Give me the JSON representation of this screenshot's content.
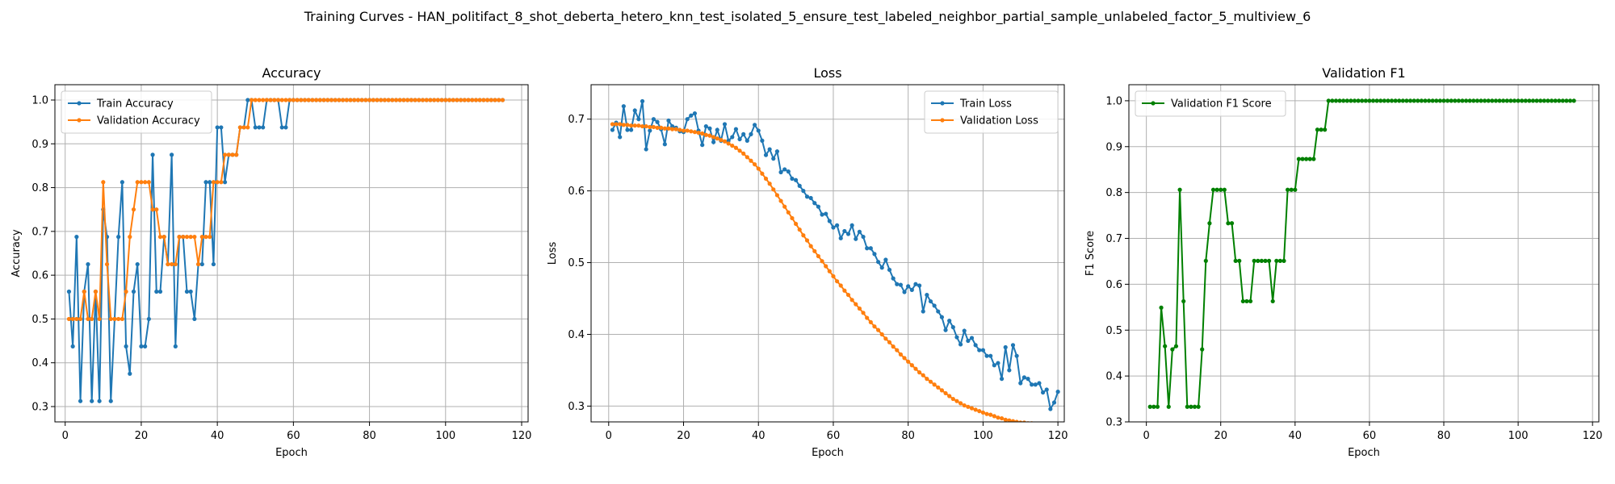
{
  "figure": {
    "suptitle": "Training Curves - HAN_politifact_8_shot_deberta_hetero_knn_test_isolated_5_ensure_test_labeled_neighbor_partial_sample_unlabeled_factor_5_multiview_6"
  },
  "colors": {
    "blue": "#1f77b4",
    "orange": "#ff7f0e",
    "green": "#008000",
    "grid": "#b0b0b0"
  },
  "chart_data": [
    {
      "type": "line",
      "title": "Accuracy",
      "xlabel": "Epoch",
      "ylabel": "Accuracy",
      "xlim": [
        -2.7,
        121.7
      ],
      "ylim": [
        0.265,
        1.035
      ],
      "xticks": [
        0,
        20,
        40,
        60,
        80,
        100,
        120
      ],
      "yticks": [
        0.3,
        0.4,
        0.5,
        0.6,
        0.7,
        0.8,
        0.9,
        1.0
      ],
      "grid": true,
      "legend_position": "upper-left",
      "x_start": 1,
      "series": [
        {
          "name": "Train Accuracy",
          "color": "#1f77b4",
          "values": [
            0.5625,
            0.4375,
            0.6875,
            0.3125,
            0.5625,
            0.625,
            0.3125,
            0.5625,
            0.3125,
            0.75,
            0.6875,
            0.3125,
            0.5,
            0.6875,
            0.8125,
            0.4375,
            0.375,
            0.5625,
            0.625,
            0.4375,
            0.4375,
            0.5,
            0.875,
            0.5625,
            0.5625,
            0.6875,
            0.625,
            0.875,
            0.4375,
            0.6875,
            0.6875,
            0.5625,
            0.5625,
            0.5,
            0.625,
            0.625,
            0.8125,
            0.8125,
            0.625,
            0.9375,
            0.9375,
            0.8125,
            0.875,
            0.875,
            0.875,
            0.9375,
            0.9375,
            1.0,
            1.0,
            0.9375,
            0.9375,
            0.9375,
            1.0,
            1.0,
            1.0,
            1.0,
            0.9375,
            0.9375,
            1.0,
            1.0,
            1.0,
            1.0,
            1.0,
            1.0,
            1.0,
            1.0,
            1.0,
            1.0,
            1.0,
            1.0,
            1.0,
            1.0,
            1.0,
            1.0,
            1.0,
            1.0,
            1.0,
            1.0,
            1.0,
            1.0,
            1.0,
            1.0,
            1.0,
            1.0,
            1.0,
            1.0,
            1.0,
            1.0,
            1.0,
            1.0,
            1.0,
            1.0,
            1.0,
            1.0,
            1.0,
            1.0,
            1.0,
            1.0,
            1.0,
            1.0,
            1.0,
            1.0,
            1.0,
            1.0,
            1.0,
            1.0,
            1.0,
            1.0,
            1.0,
            1.0,
            1.0,
            1.0,
            1.0,
            1.0,
            1.0
          ]
        },
        {
          "name": "Validation Accuracy",
          "color": "#ff7f0e",
          "values": [
            0.5,
            0.5,
            0.5,
            0.5,
            0.5625,
            0.5,
            0.5,
            0.5625,
            0.5,
            0.8125,
            0.625,
            0.5,
            0.5,
            0.5,
            0.5,
            0.5625,
            0.6875,
            0.75,
            0.8125,
            0.8125,
            0.8125,
            0.8125,
            0.75,
            0.75,
            0.6875,
            0.6875,
            0.625,
            0.625,
            0.625,
            0.6875,
            0.6875,
            0.6875,
            0.6875,
            0.6875,
            0.625,
            0.6875,
            0.6875,
            0.6875,
            0.8125,
            0.8125,
            0.8125,
            0.875,
            0.875,
            0.875,
            0.875,
            0.9375,
            0.9375,
            0.9375,
            1.0,
            1.0,
            1.0,
            1.0,
            1.0,
            1.0,
            1.0,
            1.0,
            1.0,
            1.0,
            1.0,
            1.0,
            1.0,
            1.0,
            1.0,
            1.0,
            1.0,
            1.0,
            1.0,
            1.0,
            1.0,
            1.0,
            1.0,
            1.0,
            1.0,
            1.0,
            1.0,
            1.0,
            1.0,
            1.0,
            1.0,
            1.0,
            1.0,
            1.0,
            1.0,
            1.0,
            1.0,
            1.0,
            1.0,
            1.0,
            1.0,
            1.0,
            1.0,
            1.0,
            1.0,
            1.0,
            1.0,
            1.0,
            1.0,
            1.0,
            1.0,
            1.0,
            1.0,
            1.0,
            1.0,
            1.0,
            1.0,
            1.0,
            1.0,
            1.0,
            1.0,
            1.0,
            1.0,
            1.0,
            1.0,
            1.0,
            1.0
          ]
        }
      ]
    },
    {
      "type": "line",
      "title": "Loss",
      "xlabel": "Epoch",
      "ylabel": "Loss",
      "xlim": [
        -4.7,
        121.7
      ],
      "ylim": [
        0.278,
        0.748
      ],
      "xticks": [
        0,
        20,
        40,
        60,
        80,
        100,
        120
      ],
      "yticks": [
        0.3,
        0.4,
        0.5,
        0.6,
        0.7
      ],
      "grid": true,
      "legend_position": "upper-right",
      "x_start": 1,
      "series": [
        {
          "name": "Train Loss",
          "color": "#1f77b4",
          "values": [
            0.685,
            0.695,
            0.675,
            0.718,
            0.685,
            0.685,
            0.712,
            0.7,
            0.725,
            0.658,
            0.684,
            0.7,
            0.696,
            0.686,
            0.665,
            0.698,
            0.69,
            0.688,
            0.683,
            0.682,
            0.7,
            0.705,
            0.708,
            0.684,
            0.664,
            0.69,
            0.687,
            0.668,
            0.685,
            0.67,
            0.693,
            0.67,
            0.675,
            0.686,
            0.672,
            0.679,
            0.67,
            0.679,
            0.692,
            0.684,
            0.67,
            0.65,
            0.658,
            0.645,
            0.655,
            0.626,
            0.63,
            0.627,
            0.617,
            0.615,
            0.607,
            0.6,
            0.592,
            0.59,
            0.583,
            0.578,
            0.567,
            0.568,
            0.558,
            0.549,
            0.552,
            0.534,
            0.544,
            0.54,
            0.552,
            0.533,
            0.543,
            0.536,
            0.52,
            0.52,
            0.512,
            0.501,
            0.493,
            0.504,
            0.49,
            0.478,
            0.47,
            0.469,
            0.459,
            0.467,
            0.462,
            0.47,
            0.468,
            0.432,
            0.455,
            0.446,
            0.44,
            0.432,
            0.424,
            0.406,
            0.419,
            0.41,
            0.396,
            0.386,
            0.405,
            0.391,
            0.395,
            0.385,
            0.378,
            0.378,
            0.37,
            0.37,
            0.357,
            0.36,
            0.338,
            0.382,
            0.35,
            0.385,
            0.37,
            0.332,
            0.34,
            0.338,
            0.33,
            0.33,
            0.332,
            0.319,
            0.323,
            0.296,
            0.305,
            0.32
          ]
        },
        {
          "name": "Validation Loss",
          "color": "#ff7f0e",
          "values": [
            0.693,
            0.693,
            0.693,
            0.692,
            0.692,
            0.691,
            0.691,
            0.691,
            0.69,
            0.69,
            0.689,
            0.689,
            0.688,
            0.688,
            0.687,
            0.687,
            0.686,
            0.686,
            0.685,
            0.684,
            0.684,
            0.683,
            0.682,
            0.681,
            0.68,
            0.678,
            0.677,
            0.675,
            0.673,
            0.671,
            0.669,
            0.666,
            0.663,
            0.66,
            0.656,
            0.652,
            0.647,
            0.642,
            0.637,
            0.631,
            0.624,
            0.617,
            0.61,
            0.602,
            0.594,
            0.586,
            0.578,
            0.57,
            0.562,
            0.554,
            0.546,
            0.538,
            0.531,
            0.523,
            0.516,
            0.509,
            0.502,
            0.495,
            0.488,
            0.481,
            0.474,
            0.468,
            0.461,
            0.455,
            0.448,
            0.442,
            0.436,
            0.43,
            0.423,
            0.417,
            0.411,
            0.406,
            0.4,
            0.394,
            0.389,
            0.383,
            0.378,
            0.372,
            0.367,
            0.362,
            0.357,
            0.352,
            0.347,
            0.343,
            0.338,
            0.334,
            0.33,
            0.326,
            0.322,
            0.318,
            0.314,
            0.31,
            0.307,
            0.304,
            0.301,
            0.299,
            0.297,
            0.295,
            0.293,
            0.291,
            0.289,
            0.288,
            0.286,
            0.284,
            0.283,
            0.281,
            0.28,
            0.279,
            0.278,
            0.277,
            0.277,
            0.276,
            0.276,
            0.275,
            0.275
          ]
        }
      ]
    },
    {
      "type": "line",
      "title": "Validation F1",
      "xlabel": "Epoch",
      "ylabel": "F1 Score",
      "xlim": [
        -4.7,
        121.7
      ],
      "ylim": [
        0.3,
        1.035
      ],
      "xticks": [
        0,
        20,
        40,
        60,
        80,
        100,
        120
      ],
      "yticks": [
        0.3,
        0.4,
        0.5,
        0.6,
        0.7,
        0.8,
        0.9,
        1.0
      ],
      "grid": true,
      "legend_position": "upper-left",
      "x_start": 1,
      "series": [
        {
          "name": "Validation F1 Score",
          "color": "#008000",
          "values": [
            0.333,
            0.333,
            0.333,
            0.549,
            0.465,
            0.333,
            0.458,
            0.465,
            0.806,
            0.563,
            0.333,
            0.333,
            0.333,
            0.333,
            0.458,
            0.651,
            0.733,
            0.806,
            0.806,
            0.806,
            0.806,
            0.733,
            0.733,
            0.651,
            0.651,
            0.563,
            0.563,
            0.563,
            0.651,
            0.651,
            0.651,
            0.651,
            0.651,
            0.563,
            0.651,
            0.651,
            0.651,
            0.806,
            0.806,
            0.806,
            0.873,
            0.873,
            0.873,
            0.873,
            0.873,
            0.937,
            0.937,
            0.937,
            1.0,
            1.0,
            1.0,
            1.0,
            1.0,
            1.0,
            1.0,
            1.0,
            1.0,
            1.0,
            1.0,
            1.0,
            1.0,
            1.0,
            1.0,
            1.0,
            1.0,
            1.0,
            1.0,
            1.0,
            1.0,
            1.0,
            1.0,
            1.0,
            1.0,
            1.0,
            1.0,
            1.0,
            1.0,
            1.0,
            1.0,
            1.0,
            1.0,
            1.0,
            1.0,
            1.0,
            1.0,
            1.0,
            1.0,
            1.0,
            1.0,
            1.0,
            1.0,
            1.0,
            1.0,
            1.0,
            1.0,
            1.0,
            1.0,
            1.0,
            1.0,
            1.0,
            1.0,
            1.0,
            1.0,
            1.0,
            1.0,
            1.0,
            1.0,
            1.0,
            1.0,
            1.0,
            1.0,
            1.0,
            1.0,
            1.0,
            1.0
          ]
        }
      ]
    }
  ]
}
